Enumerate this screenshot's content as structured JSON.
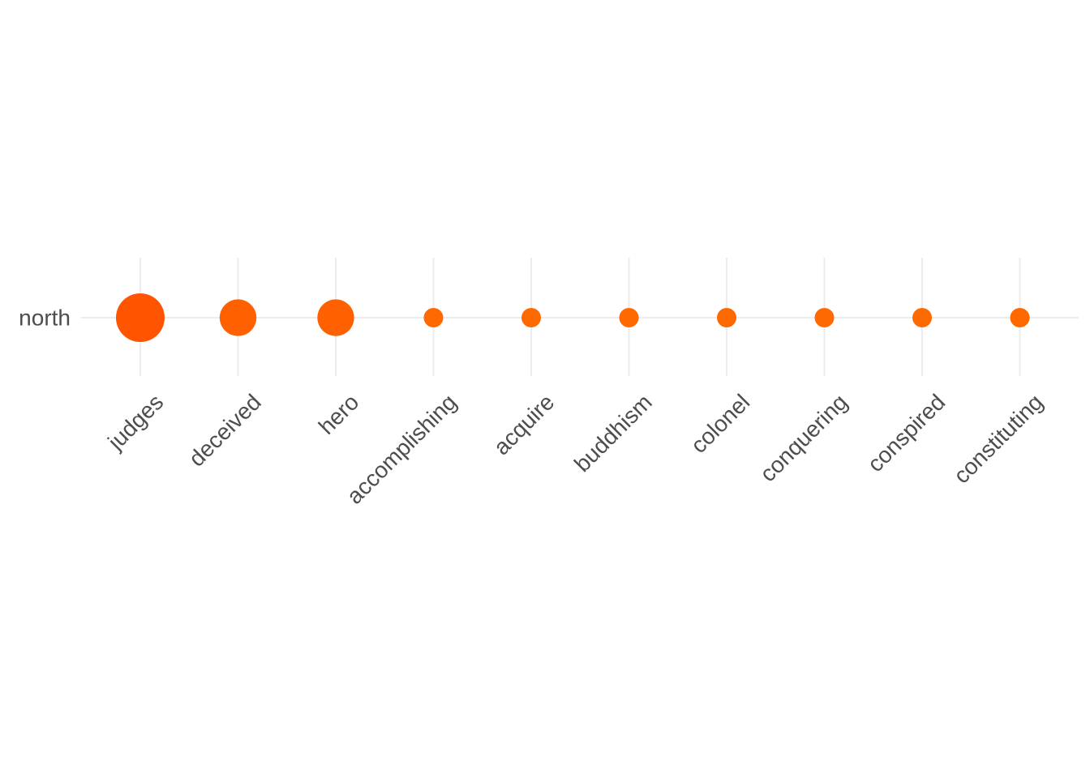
{
  "chart_data": {
    "type": "scatter",
    "y_categories": [
      "north"
    ],
    "categories": [
      "judges",
      "deceived",
      "hero",
      "accomplishing",
      "acquire",
      "buddhism",
      "colonel",
      "conquering",
      "conspired",
      "constituting"
    ],
    "series": [
      {
        "y": "north",
        "values": [
          5,
          3,
          3,
          1,
          1,
          1,
          1,
          1,
          1,
          1
        ]
      }
    ],
    "point_colors": [
      "#ff5500",
      "#ff6000",
      "#ff6000",
      "#ff6a00",
      "#ff6a00",
      "#ff6a00",
      "#ff6a00",
      "#ff6a00",
      "#ff6a00",
      "#ff6a00"
    ],
    "grid": true,
    "legend": "none",
    "x_tick_rotation_deg": 45
  }
}
